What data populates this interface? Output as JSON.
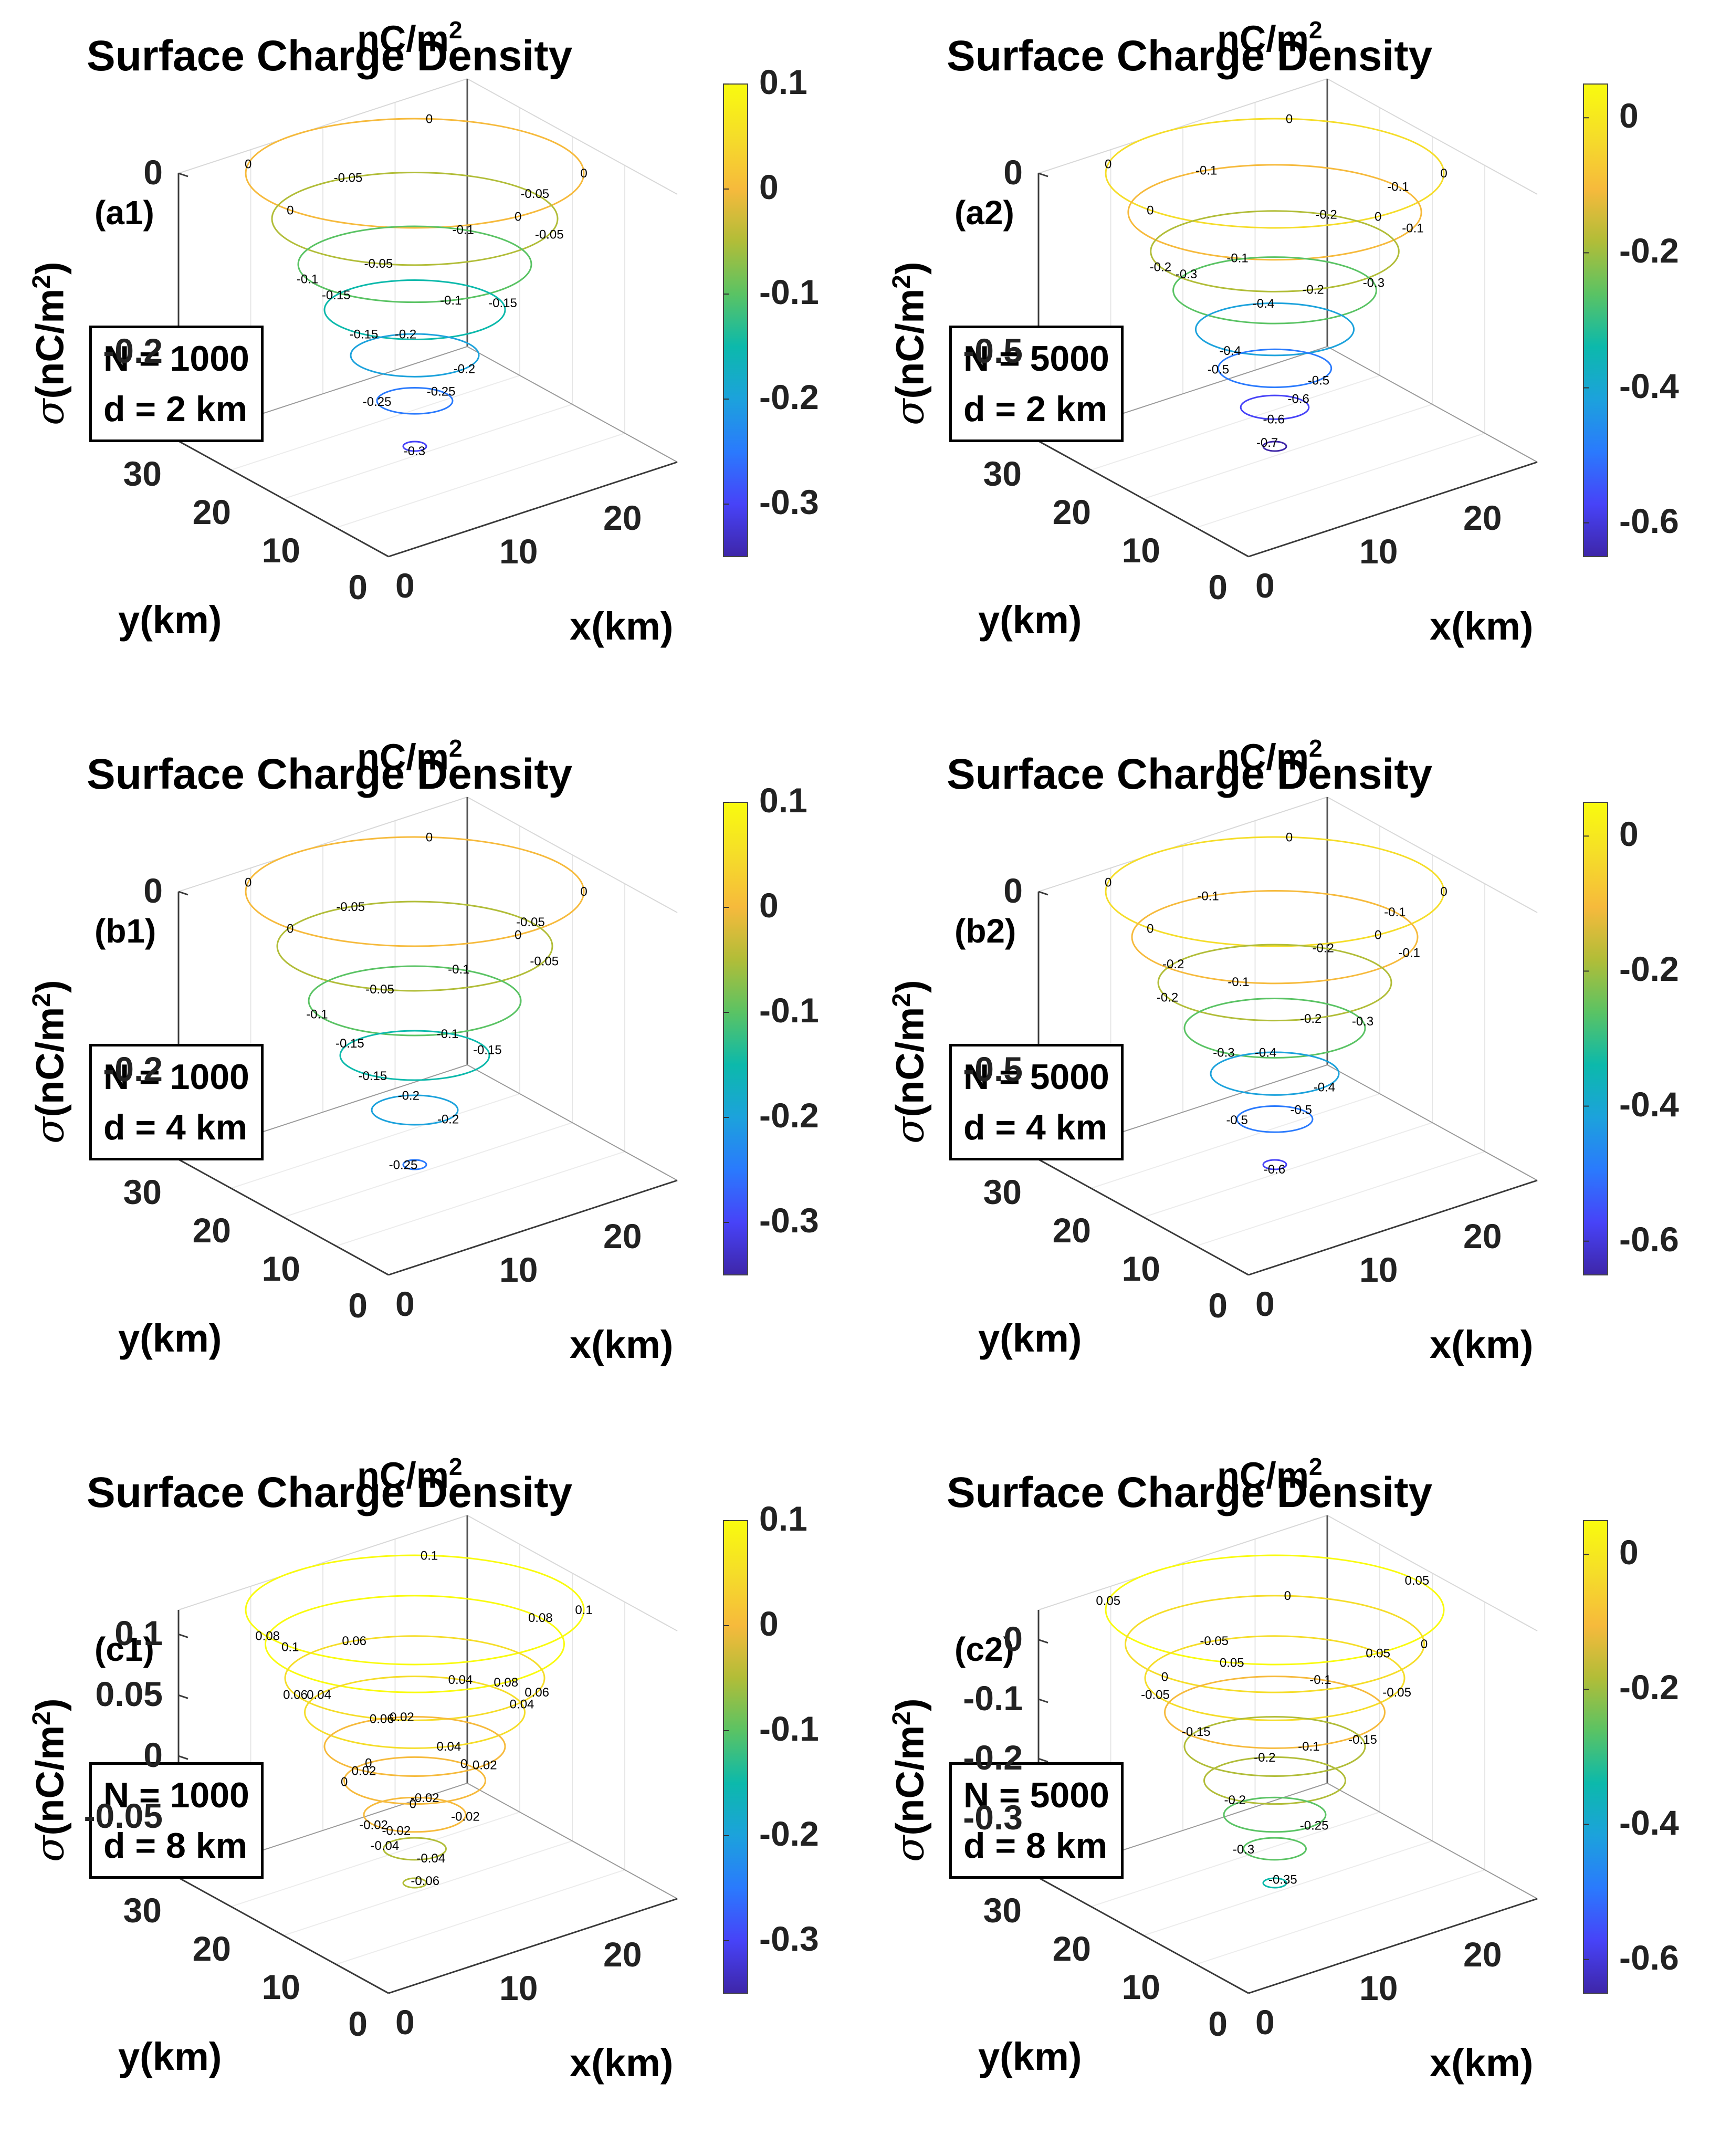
{
  "chart_data": [
    {
      "id": "a1",
      "type": "contour3",
      "panel_label": "(a1)",
      "title": "Surface Charge Density",
      "colorbar": {
        "unit": "nC/m",
        "unit_sup": "2",
        "ticks": [
          "0.1",
          "0",
          "-0.1",
          "-0.2",
          "-0.3"
        ],
        "tick_values": [
          0.1,
          0,
          -0.1,
          -0.2,
          -0.3
        ],
        "range": [
          -0.35,
          0.1
        ]
      },
      "zlabel_prefix": "σ",
      "zlabel_unit": "(nC/m",
      "zlabel_sup": "2",
      "zlabel_close": ")",
      "xlabel": "x(km)",
      "ylabel": "y(km)",
      "zticks": [
        "0",
        "-0.2"
      ],
      "z_tick_values": [
        0,
        -0.2
      ],
      "zlim": [
        -0.3,
        0
      ],
      "xticks": [
        "0",
        "10",
        "20"
      ],
      "yticks": [
        "30",
        "20",
        "10",
        "0"
      ],
      "box_lines": [
        "N = 1000",
        "d = 2 km"
      ],
      "contour_levels": [
        "0",
        "0",
        "0",
        "0",
        "0",
        "-0.05",
        "-0.05",
        "-0.05",
        "-0.05",
        "-0.1",
        "-0.1",
        "-0.1",
        "-0.15",
        "-0.15",
        "-0.15",
        "-0.2",
        "-0.2",
        "-0.25",
        "-0.25",
        "-0.3"
      ]
    },
    {
      "id": "a2",
      "type": "contour3",
      "panel_label": "(a2)",
      "title": "Surface Charge Density",
      "colorbar": {
        "unit": "nC/m",
        "unit_sup": "2",
        "ticks": [
          "0",
          "-0.2",
          "-0.4",
          "-0.6"
        ],
        "tick_values": [
          0,
          -0.2,
          -0.4,
          -0.6
        ],
        "range": [
          -0.65,
          0.05
        ]
      },
      "zlabel_prefix": "σ",
      "zlabel_unit": "(nC/m",
      "zlabel_sup": "2",
      "zlabel_close": ")",
      "xlabel": "x(km)",
      "ylabel": "y(km)",
      "zticks": [
        "0",
        "-0.5"
      ],
      "z_tick_values": [
        0,
        -0.5
      ],
      "zlim": [
        -0.75,
        0
      ],
      "xticks": [
        "0",
        "10",
        "20"
      ],
      "yticks": [
        "30",
        "20",
        "10",
        "0"
      ],
      "box_lines": [
        "N = 5000",
        "d = 2 km"
      ],
      "contour_levels": [
        "0",
        "0",
        "0",
        "0",
        "0",
        "-0.1",
        "-0.1",
        "-0.1",
        "-0.1",
        "-0.2",
        "-0.2",
        "-0.2",
        "-0.3",
        "-0.3",
        "-0.4",
        "-0.4",
        "-0.5",
        "-0.5",
        "-0.6",
        "-0.6",
        "-0.7"
      ]
    },
    {
      "id": "b1",
      "type": "contour3",
      "panel_label": "(b1)",
      "title": "Surface Charge Density",
      "colorbar": {
        "unit": "nC/m",
        "unit_sup": "2",
        "ticks": [
          "0.1",
          "0",
          "-0.1",
          "-0.2",
          "-0.3"
        ],
        "tick_values": [
          0.1,
          0,
          -0.1,
          -0.2,
          -0.3
        ],
        "range": [
          -0.35,
          0.1
        ]
      },
      "zlabel_prefix": "σ",
      "zlabel_unit": "(nC/m",
      "zlabel_sup": "2",
      "zlabel_close": ")",
      "xlabel": "x(km)",
      "ylabel": "y(km)",
      "zticks": [
        "0",
        "-0.2"
      ],
      "z_tick_values": [
        0,
        -0.2
      ],
      "zlim": [
        -0.3,
        0
      ],
      "xticks": [
        "0",
        "10",
        "20"
      ],
      "yticks": [
        "30",
        "20",
        "10",
        "0"
      ],
      "box_lines": [
        "N = 1000",
        "d = 4 km"
      ],
      "contour_levels": [
        "0",
        "0",
        "0",
        "0",
        "0",
        "-0.05",
        "-0.05",
        "-0.05",
        "-0.05",
        "-0.1",
        "-0.1",
        "-0.1",
        "-0.15",
        "-0.15",
        "-0.15",
        "-0.2",
        "-0.2",
        "-0.25"
      ]
    },
    {
      "id": "b2",
      "type": "contour3",
      "panel_label": "(b2)",
      "title": "Surface Charge Density",
      "colorbar": {
        "unit": "nC/m",
        "unit_sup": "2",
        "ticks": [
          "0",
          "-0.2",
          "-0.4",
          "-0.6"
        ],
        "tick_values": [
          0,
          -0.2,
          -0.4,
          -0.6
        ],
        "range": [
          -0.65,
          0.05
        ]
      },
      "zlabel_prefix": "σ",
      "zlabel_unit": "(nC/m",
      "zlabel_sup": "2",
      "zlabel_close": ")",
      "xlabel": "x(km)",
      "ylabel": "y(km)",
      "zticks": [
        "0",
        "-0.5"
      ],
      "z_tick_values": [
        0,
        -0.5
      ],
      "zlim": [
        -0.75,
        0
      ],
      "xticks": [
        "0",
        "10",
        "20"
      ],
      "yticks": [
        "30",
        "20",
        "10",
        "0"
      ],
      "box_lines": [
        "N = 5000",
        "d = 4 km"
      ],
      "contour_levels": [
        "0",
        "0",
        "0",
        "0",
        "0",
        "-0.1",
        "-0.1",
        "-0.1",
        "-0.1",
        "-0.2",
        "-0.2",
        "-0.2",
        "-0.2",
        "-0.3",
        "-0.3",
        "-0.4",
        "-0.4",
        "-0.5",
        "-0.5",
        "-0.6"
      ]
    },
    {
      "id": "c1",
      "type": "contour3",
      "panel_label": "(c1)",
      "title": "Surface Charge Density",
      "colorbar": {
        "unit": "nC/m",
        "unit_sup": "2",
        "ticks": [
          "0.1",
          "0",
          "-0.1",
          "-0.2",
          "-0.3"
        ],
        "tick_values": [
          0.1,
          0,
          -0.1,
          -0.2,
          -0.3
        ],
        "range": [
          -0.35,
          0.1
        ]
      },
      "zlabel_prefix": "σ",
      "zlabel_unit": "(nC/m",
      "zlabel_sup": "2",
      "zlabel_close": ")",
      "xlabel": "x(km)",
      "ylabel": "y(km)",
      "zticks": [
        "0.1",
        "0.05",
        "0",
        "-0.05"
      ],
      "z_tick_values": [
        0.1,
        0.05,
        0,
        -0.05
      ],
      "zlim": [
        -0.1,
        0.12
      ],
      "xticks": [
        "0",
        "10",
        "20"
      ],
      "yticks": [
        "30",
        "20",
        "10",
        "0"
      ],
      "box_lines": [
        "N = 1000",
        "d = 8 km"
      ],
      "contour_levels": [
        "0.1",
        "0.1",
        "0.1",
        "0.08",
        "0.08",
        "0.08",
        "0.06",
        "0.06",
        "0.06",
        "0.06",
        "0.04",
        "0.04",
        "0.04",
        "0.04",
        "0.02",
        "0.02",
        "0.02",
        "0",
        "0",
        "0",
        "0",
        "-0.02",
        "-0.02",
        "-0.02",
        "-0.04",
        "-0.04",
        "-0.06",
        "-0.02"
      ]
    },
    {
      "id": "c2",
      "type": "contour3",
      "panel_label": "(c2)",
      "title": "Surface Charge Density",
      "colorbar": {
        "unit": "nC/m",
        "unit_sup": "2",
        "ticks": [
          "0",
          "-0.2",
          "-0.4",
          "-0.6"
        ],
        "tick_values": [
          0,
          -0.2,
          -0.4,
          -0.6
        ],
        "range": [
          -0.65,
          0.05
        ]
      },
      "zlabel_prefix": "σ",
      "zlabel_unit": "(nC/m",
      "zlabel_sup": "2",
      "zlabel_close": ")",
      "xlabel": "x(km)",
      "ylabel": "y(km)",
      "zticks": [
        "0",
        "-0.1",
        "-0.2",
        "-0.3"
      ],
      "z_tick_values": [
        0,
        -0.1,
        -0.2,
        -0.3
      ],
      "zlim": [
        -0.4,
        0.05
      ],
      "xticks": [
        "0",
        "10",
        "20"
      ],
      "yticks": [
        "30",
        "20",
        "10",
        "0"
      ],
      "box_lines": [
        "N = 5000",
        "d = 8 km"
      ],
      "contour_levels": [
        "0",
        "0",
        "0",
        "0.05",
        "0.05",
        "0.05",
        "0.05",
        "-0.05",
        "-0.05",
        "-0.05",
        "-0.1",
        "-0.1",
        "-0.15",
        "-0.15",
        "-0.2",
        "-0.2",
        "-0.25",
        "-0.3",
        "-0.35"
      ]
    }
  ],
  "colormap": [
    "#3e26a8",
    "#4743f8",
    "#2a7afd",
    "#1ca2dc",
    "#0cb9ab",
    "#5ac364",
    "#b1bd38",
    "#f6ba3c",
    "#f5dd29",
    "#f9fb0e"
  ]
}
